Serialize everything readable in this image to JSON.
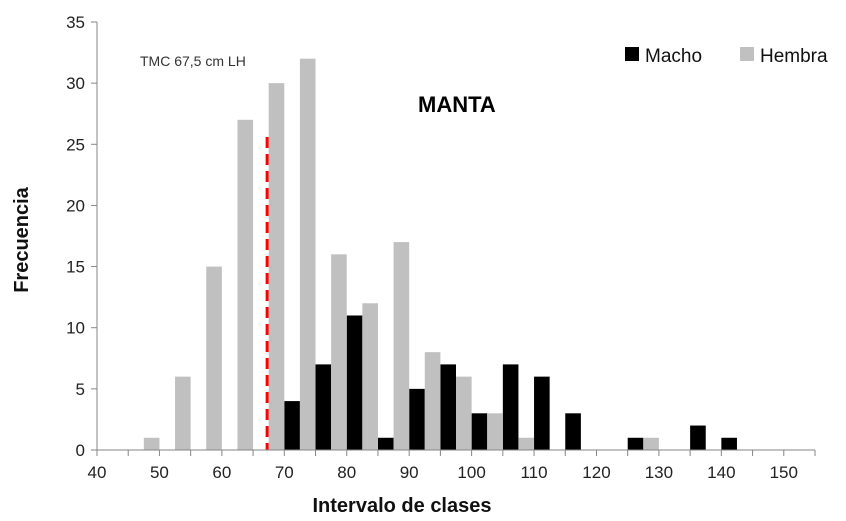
{
  "chart_data": {
    "type": "bar",
    "title": "",
    "xlabel": "Intervalo de clases",
    "ylabel": "Frecuencia",
    "xlim": [
      40,
      155
    ],
    "ylim": [
      0,
      35
    ],
    "x_ticks": [
      40,
      50,
      60,
      70,
      80,
      90,
      100,
      110,
      120,
      130,
      140,
      150
    ],
    "y_ticks": [
      0,
      5,
      10,
      15,
      20,
      25,
      30,
      35
    ],
    "grid": false,
    "legend_position": "top-right",
    "categories": [
      50,
      55,
      60,
      65,
      70,
      75,
      80,
      85,
      90,
      95,
      100,
      105,
      110,
      115,
      120,
      125,
      130,
      135,
      140
    ],
    "series": [
      {
        "name": "Macho",
        "color": "#000000",
        "values": [
          0,
          0,
          0,
          0,
          4,
          7,
          11,
          1,
          5,
          7,
          3,
          7,
          6,
          3,
          0,
          1,
          0,
          2,
          1
        ]
      },
      {
        "name": "Hembra",
        "color": "#c0c0c0",
        "values": [
          1,
          6,
          15,
          27,
          30,
          32,
          16,
          12,
          17,
          8,
          6,
          3,
          1,
          0,
          0,
          0,
          1,
          0,
          0
        ]
      }
    ],
    "annotations": [
      {
        "text": "TMC 67,5 cm LH"
      },
      {
        "text": "MANTA"
      }
    ],
    "reference_line": {
      "x": 67.5,
      "color": "#ff0000",
      "style": "dashed"
    }
  }
}
